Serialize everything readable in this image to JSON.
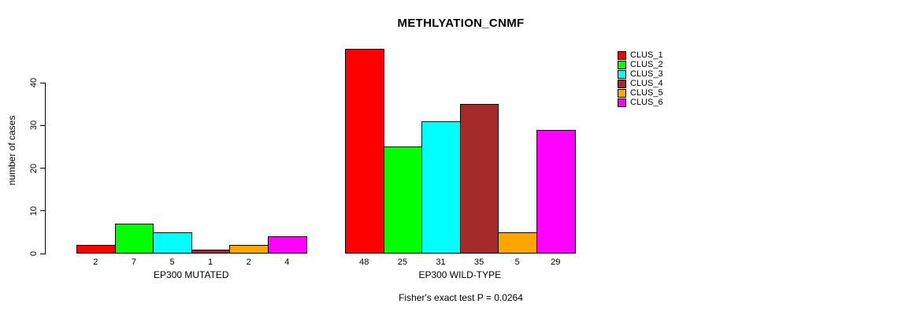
{
  "chart_data": {
    "type": "bar",
    "title": "METHLYATION_CNMF",
    "ylabel": "number of cases",
    "xlabel": "",
    "ylim": [
      0,
      48
    ],
    "yticks": [
      0,
      10,
      20,
      30,
      40
    ],
    "grid": false,
    "legend_position": "right",
    "categories": [
      "EP300 MUTATED",
      "EP300 WILD-TYPE"
    ],
    "series": [
      {
        "name": "CLUS_1",
        "color": "#FF0000",
        "values": [
          2,
          48
        ]
      },
      {
        "name": "CLUS_2",
        "color": "#00FF00",
        "values": [
          7,
          25
        ]
      },
      {
        "name": "CLUS_3",
        "color": "#00FFFF",
        "values": [
          5,
          31
        ]
      },
      {
        "name": "CLUS_4",
        "color": "#A52A2A",
        "values": [
          1,
          35
        ]
      },
      {
        "name": "CLUS_5",
        "color": "#FFA500",
        "values": [
          2,
          5
        ]
      },
      {
        "name": "CLUS_6",
        "color": "#FF00FF",
        "values": [
          4,
          29
        ]
      }
    ],
    "bar_value_labels": [
      [
        2,
        7,
        5,
        1,
        2,
        4
      ],
      [
        48,
        25,
        31,
        35,
        5,
        29
      ]
    ],
    "annotation": "Fisher's exact test P = 0.0264"
  }
}
